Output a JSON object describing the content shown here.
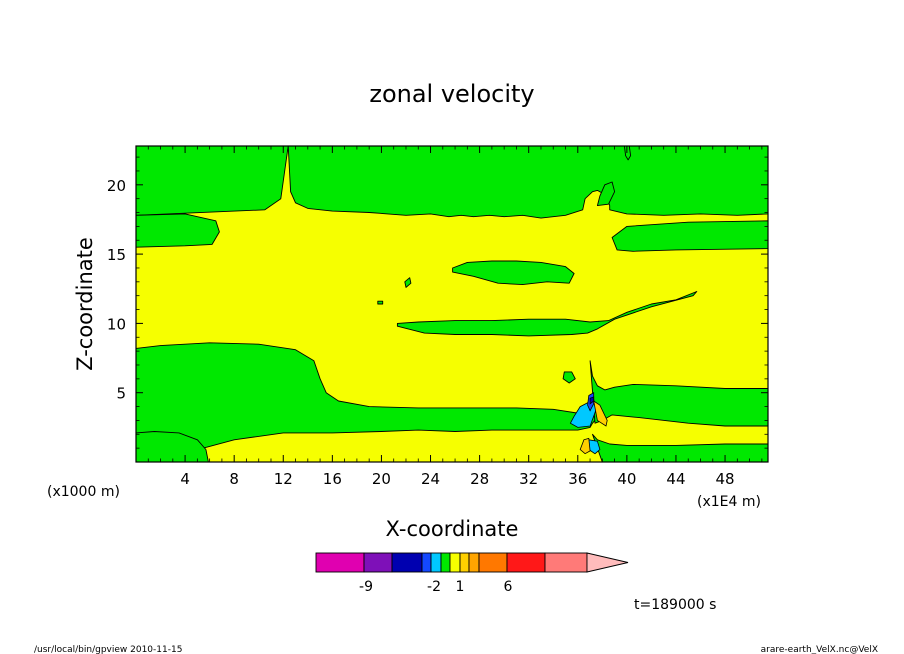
{
  "chart_data": {
    "type": "contour",
    "title": "zonal velocity",
    "xlabel": "X-coordinate",
    "ylabel": "Z-coordinate",
    "x_unit_left": "(x1000 m)",
    "x_unit_right": "(x1E4 m)",
    "xlim": [
      0,
      51.5
    ],
    "ylim": [
      0,
      22.8
    ],
    "x_ticks": [
      4,
      8,
      12,
      16,
      20,
      24,
      28,
      32,
      36,
      40,
      44,
      48
    ],
    "y_ticks": [
      5,
      10,
      15,
      20
    ],
    "background_color": "#f6ff00",
    "fill_color": "#00e800",
    "time_label": "t=189000 s",
    "colorbar": {
      "tick_labels": [
        "-9",
        "-2",
        "1",
        "6"
      ],
      "colors": [
        "#e000b0",
        "#7e10b8",
        "#0000b0",
        "#1448ff",
        "#00c8ff",
        "#00e800",
        "#f6ff00",
        "#ffd000",
        "#ffa500",
        "#ff7800",
        "#ff1818",
        "#ff7a78",
        "#ffbcbc"
      ]
    },
    "green_regions": [
      {
        "name": "top-band",
        "x": [
          12.4,
          12.6,
          13.0,
          14.0,
          16.0,
          19.0,
          22.0,
          24.0,
          25.5,
          26.5,
          27.5,
          28.8,
          30.0,
          31.5,
          33.0,
          35.0,
          36.4,
          36.6,
          37.2,
          37.6,
          38.2,
          38.4,
          38.6,
          38.6,
          40.0,
          43.0,
          46.0,
          49.0,
          51.5,
          51.5,
          39.5,
          0,
          0,
          10.5,
          11.8
        ],
        "y": [
          22.8,
          19.5,
          18.7,
          18.3,
          18.1,
          18.0,
          17.8,
          17.9,
          17.7,
          17.8,
          17.7,
          17.8,
          17.7,
          17.8,
          17.6,
          17.8,
          18.2,
          19.0,
          19.5,
          19.6,
          19.3,
          19.0,
          18.5,
          18.2,
          17.9,
          17.8,
          17.9,
          17.8,
          17.9,
          22.8,
          22.8,
          22.8,
          17.8,
          18.2,
          19.0
        ]
      },
      {
        "name": "left-mid-tongue",
        "x": [
          0,
          4.0,
          6.5,
          6.8,
          6.2,
          4.0,
          0
        ],
        "y": [
          17.8,
          17.9,
          17.4,
          16.6,
          15.7,
          15.6,
          15.5
        ]
      },
      {
        "name": "right-mid-tongue",
        "x": [
          51.5,
          45.0,
          40.0,
          38.8,
          39.2,
          40.5,
          44.0,
          51.5
        ],
        "y": [
          17.4,
          17.3,
          17.0,
          16.2,
          15.3,
          15.2,
          15.3,
          15.4
        ]
      },
      {
        "name": "upper-mid-blob",
        "x": [
          25.8,
          27.0,
          29.0,
          31.0,
          33.0,
          35.0,
          35.7,
          35.3,
          33.5,
          31.5,
          29.5,
          27.5,
          25.8
        ],
        "y": [
          14.0,
          14.4,
          14.5,
          14.5,
          14.4,
          14.1,
          13.6,
          12.9,
          13.0,
          12.8,
          12.9,
          13.4,
          13.7
        ]
      },
      {
        "name": "mid-band",
        "x": [
          21.3,
          23.0,
          26.0,
          29.0,
          32.0,
          35.0,
          37.0,
          38.5,
          40.0,
          42.0,
          44.0,
          45.7,
          45.4,
          42.0,
          39.0,
          37.6,
          36.8,
          35.5,
          32.0,
          29.0,
          26.0,
          23.5,
          21.3
        ],
        "y": [
          10.0,
          10.1,
          10.2,
          10.2,
          10.3,
          10.3,
          10.1,
          10.2,
          10.8,
          11.4,
          11.7,
          12.3,
          12.0,
          11.2,
          10.3,
          9.6,
          9.3,
          9.2,
          9.1,
          9.2,
          9.2,
          9.3,
          9.8
        ]
      },
      {
        "name": "bottom-band",
        "x": [
          0,
          2.0,
          6.0,
          10.0,
          13.0,
          14.5,
          15.0,
          15.5,
          16.5,
          19.0,
          23.0,
          27.0,
          31.0,
          34.0,
          36.2,
          37.6,
          37.2,
          37.0,
          36.0,
          33.0,
          29.0,
          26.0,
          23.0,
          20.0,
          16.0,
          12.0,
          8.0,
          5.5,
          5.2,
          4.5,
          3.0,
          1.5,
          0
        ],
        "y": [
          8.2,
          8.4,
          8.6,
          8.5,
          8.1,
          7.3,
          6.0,
          5.0,
          4.4,
          4.0,
          3.9,
          3.9,
          3.9,
          3.8,
          3.5,
          3.2,
          2.8,
          2.5,
          2.3,
          2.3,
          2.3,
          2.2,
          2.3,
          2.2,
          2.1,
          2.1,
          1.6,
          1.0,
          0.5,
          0.2,
          0,
          0,
          0
        ]
      },
      {
        "name": "bottom-left-corner",
        "x": [
          0,
          1.5,
          3.5,
          5.0,
          5.7,
          5.9,
          5.2,
          3.0,
          0
        ],
        "y": [
          2.1,
          2.2,
          2.1,
          1.6,
          0.9,
          0,
          0,
          0,
          0
        ]
      },
      {
        "name": "right-lower-band",
        "x": [
          37.0,
          37.2,
          37.6,
          38.2,
          39.0,
          40.5,
          44.0,
          48.0,
          51.5,
          51.5,
          48.0,
          45.0,
          41.0,
          38.8,
          38.0,
          37.4
        ],
        "y": [
          7.3,
          6.2,
          5.5,
          5.2,
          5.4,
          5.6,
          5.5,
          5.3,
          5.3,
          2.6,
          2.6,
          2.8,
          3.2,
          3.4,
          3.0,
          2.8
        ]
      },
      {
        "name": "bottom-right-corner",
        "x": [
          37.2,
          37.6,
          38.6,
          40.0,
          44.0,
          48.0,
          51.5,
          51.5,
          38.0
        ],
        "y": [
          2.0,
          1.6,
          1.3,
          1.2,
          1.2,
          1.3,
          1.3,
          0,
          0
        ]
      },
      {
        "name": "near-top-strip",
        "x": [
          39.8,
          40.0,
          40.2,
          40.3,
          40.1,
          39.9
        ],
        "y": [
          22.8,
          22.8,
          22.8,
          22.1,
          21.8,
          22.1
        ]
      },
      {
        "name": "right-step",
        "x": [
          37.6,
          38.5,
          39.0,
          38.8,
          38.2,
          37.8
        ],
        "y": [
          18.5,
          18.6,
          19.5,
          20.2,
          20.0,
          19.2
        ]
      },
      {
        "name": "small-dot-a",
        "x": [
          34.9,
          35.5,
          35.8,
          35.3,
          34.8
        ],
        "y": [
          6.5,
          6.5,
          6.0,
          5.7,
          6.0
        ]
      },
      {
        "name": "small-dot-b",
        "x": [
          21.9,
          22.3,
          22.4,
          22.0
        ],
        "y": [
          13.0,
          13.3,
          12.9,
          12.6
        ]
      },
      {
        "name": "small-dot-c",
        "x": [
          19.7,
          20.1,
          20.1,
          19.7
        ],
        "y": [
          11.6,
          11.6,
          11.4,
          11.4
        ]
      }
    ],
    "velocity_features": [
      {
        "name": "blue-lobe-upper",
        "color": "#00c8ff",
        "x": [
          36.2,
          37.3,
          37.5,
          37.0,
          36.0,
          35.4,
          35.7
        ],
        "y": [
          4.0,
          4.5,
          3.8,
          2.6,
          2.5,
          2.8,
          3.3
        ]
      },
      {
        "name": "dark-blue-core",
        "color": "#1448ff",
        "x": [
          36.9,
          37.3,
          37.3,
          37.0,
          36.8
        ],
        "y": [
          4.8,
          5.0,
          4.2,
          3.7,
          4.1
        ]
      },
      {
        "name": "navy-core",
        "color": "#0000b0",
        "x": [
          37.0,
          37.3,
          37.3,
          37.0
        ],
        "y": [
          4.6,
          4.7,
          4.4,
          4.2
        ]
      },
      {
        "name": "orange-lobe",
        "color": "#ffd000",
        "x": [
          37.3,
          37.8,
          38.4,
          38.3,
          37.6
        ],
        "y": [
          4.4,
          4.1,
          3.0,
          2.6,
          3.0
        ]
      },
      {
        "name": "blue-lobe-lower",
        "color": "#00c8ff",
        "x": [
          36.9,
          37.6,
          37.8,
          37.4,
          36.9
        ],
        "y": [
          1.6,
          1.5,
          0.9,
          0.6,
          0.9
        ]
      },
      {
        "name": "orange-lobe-lower",
        "color": "#ffd000",
        "x": [
          36.5,
          36.9,
          37.0,
          36.6,
          36.2
        ],
        "y": [
          1.6,
          1.7,
          0.8,
          0.6,
          0.9
        ]
      }
    ]
  },
  "footer": {
    "left": "/usr/local/bin/gpview  2010-11-15",
    "right": "arare-earth_VelX.nc@VelX"
  }
}
